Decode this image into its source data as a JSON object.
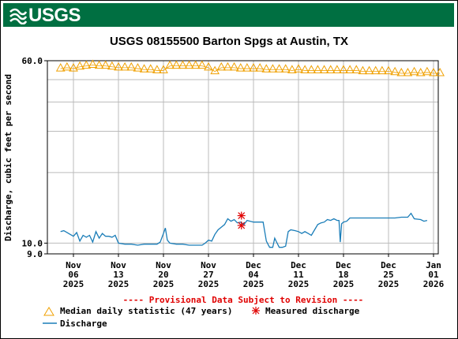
{
  "header": {
    "logo_text": "USGS",
    "logo_icon": "usgs-wave-icon",
    "brand_color": "#006f41"
  },
  "chart_data": {
    "type": "line",
    "title": "USGS 08155500 Barton Spgs at Austin, TX",
    "ylabel": "Discharge, cubic feet per second",
    "xlabel": "",
    "y_scale": "log",
    "ylim": [
      9.0,
      60.0
    ],
    "y_tick_labels": [
      "60.0",
      "10.0",
      "9.0"
    ],
    "grid": true,
    "x_ticks": [
      {
        "date": "2025-11-06",
        "l1": "Nov",
        "l2": "06",
        "l3": "2025"
      },
      {
        "date": "2025-11-13",
        "l1": "Nov",
        "l2": "13",
        "l3": "2025"
      },
      {
        "date": "2025-11-20",
        "l1": "Nov",
        "l2": "20",
        "l3": "2025"
      },
      {
        "date": "2025-11-27",
        "l1": "Nov",
        "l2": "27",
        "l3": "2025"
      },
      {
        "date": "2025-12-04",
        "l1": "Dec",
        "l2": "04",
        "l3": "2025"
      },
      {
        "date": "2025-12-11",
        "l1": "Dec",
        "l2": "11",
        "l3": "2025"
      },
      {
        "date": "2025-12-18",
        "l1": "Dec",
        "l2": "18",
        "l3": "2025"
      },
      {
        "date": "2025-12-25",
        "l1": "Dec",
        "l2": "25",
        "l3": "2025"
      },
      {
        "date": "2026-01-01",
        "l1": "Jan",
        "l2": "01",
        "l3": "2026"
      }
    ],
    "provisional_note": "---- Provisional Data Subject to Revision ----",
    "legend": {
      "median_label": "Median daily statistic (47 years)",
      "measured_label": "Measured discharge",
      "discharge_label": "Discharge",
      "placement": "bottom"
    },
    "colors": {
      "median": "#f0a000",
      "discharge": "#1a7db8",
      "measured": "#e00000",
      "note": "#e00000",
      "grid": "#bbbbbb"
    },
    "series": [
      {
        "name": "Median daily statistic (47 years)",
        "marker": "triangle",
        "points": [
          [
            "2025-11-04",
            55.5
          ],
          [
            "2025-11-05",
            56.0
          ],
          [
            "2025-11-06",
            55.5
          ],
          [
            "2025-11-07",
            56.5
          ],
          [
            "2025-11-08",
            57.0
          ],
          [
            "2025-11-09",
            57.5
          ],
          [
            "2025-11-10",
            57.0
          ],
          [
            "2025-11-11",
            57.0
          ],
          [
            "2025-11-12",
            56.5
          ],
          [
            "2025-11-13",
            56.0
          ],
          [
            "2025-11-14",
            56.0
          ],
          [
            "2025-11-15",
            56.0
          ],
          [
            "2025-11-16",
            55.5
          ],
          [
            "2025-11-17",
            55.0
          ],
          [
            "2025-11-18",
            55.0
          ],
          [
            "2025-11-19",
            54.5
          ],
          [
            "2025-11-20",
            54.5
          ],
          [
            "2025-11-21",
            57.0
          ],
          [
            "2025-11-22",
            57.0
          ],
          [
            "2025-11-23",
            57.0
          ],
          [
            "2025-11-24",
            57.0
          ],
          [
            "2025-11-25",
            57.0
          ],
          [
            "2025-11-26",
            57.0
          ],
          [
            "2025-11-27",
            56.0
          ],
          [
            "2025-11-28",
            54.0
          ],
          [
            "2025-11-29",
            56.0
          ],
          [
            "2025-11-30",
            56.0
          ],
          [
            "2025-12-01",
            56.0
          ],
          [
            "2025-12-02",
            55.5
          ],
          [
            "2025-12-03",
            55.5
          ],
          [
            "2025-12-04",
            55.5
          ],
          [
            "2025-12-05",
            55.5
          ],
          [
            "2025-12-06",
            55.0
          ],
          [
            "2025-12-07",
            55.0
          ],
          [
            "2025-12-08",
            55.0
          ],
          [
            "2025-12-09",
            55.0
          ],
          [
            "2025-12-10",
            54.5
          ],
          [
            "2025-12-11",
            55.0
          ],
          [
            "2025-12-12",
            54.5
          ],
          [
            "2025-12-13",
            54.5
          ],
          [
            "2025-12-14",
            54.5
          ],
          [
            "2025-12-15",
            54.5
          ],
          [
            "2025-12-16",
            54.5
          ],
          [
            "2025-12-17",
            54.5
          ],
          [
            "2025-12-18",
            54.5
          ],
          [
            "2025-12-19",
            54.5
          ],
          [
            "2025-12-20",
            54.5
          ],
          [
            "2025-12-21",
            54.0
          ],
          [
            "2025-12-22",
            54.0
          ],
          [
            "2025-12-23",
            54.0
          ],
          [
            "2025-12-24",
            54.0
          ],
          [
            "2025-12-25",
            54.0
          ],
          [
            "2025-12-26",
            53.5
          ],
          [
            "2025-12-27",
            53.0
          ],
          [
            "2025-12-28",
            53.0
          ],
          [
            "2025-12-29",
            53.5
          ],
          [
            "2025-12-30",
            53.0
          ],
          [
            "2025-12-31",
            53.5
          ],
          [
            "2026-01-01",
            53.0
          ],
          [
            "2026-01-02",
            53.0
          ]
        ]
      },
      {
        "name": "Discharge",
        "marker": "line",
        "points": [
          [
            "2025-11-04",
            11.2
          ],
          [
            "2025-11-04.5",
            11.3
          ],
          [
            "2025-11-05",
            11.1
          ],
          [
            "2025-11-05.5",
            10.9
          ],
          [
            "2025-11-06",
            10.7
          ],
          [
            "2025-11-06.5",
            11.1
          ],
          [
            "2025-11-07",
            10.2
          ],
          [
            "2025-11-07.5",
            10.8
          ],
          [
            "2025-11-08",
            10.6
          ],
          [
            "2025-11-08.5",
            10.8
          ],
          [
            "2025-11-09",
            10.1
          ],
          [
            "2025-11-09.5",
            11.2
          ],
          [
            "2025-11-10",
            10.5
          ],
          [
            "2025-11-10.5",
            11.0
          ],
          [
            "2025-11-11",
            10.7
          ],
          [
            "2025-11-11.5",
            10.7
          ],
          [
            "2025-11-12",
            10.6
          ],
          [
            "2025-11-12.5",
            10.8
          ],
          [
            "2025-11-13",
            10.0
          ],
          [
            "2025-11-14",
            9.9
          ],
          [
            "2025-11-15",
            9.9
          ],
          [
            "2025-11-16",
            9.8
          ],
          [
            "2025-11-17",
            9.9
          ],
          [
            "2025-11-18",
            9.9
          ],
          [
            "2025-11-19",
            9.9
          ],
          [
            "2025-11-19.5",
            10.1
          ],
          [
            "2025-11-20",
            11.0
          ],
          [
            "2025-11-20.3",
            11.6
          ],
          [
            "2025-11-20.6",
            10.3
          ],
          [
            "2025-11-21",
            10.0
          ],
          [
            "2025-11-22",
            9.9
          ],
          [
            "2025-11-23",
            9.9
          ],
          [
            "2025-11-24",
            9.8
          ],
          [
            "2025-11-25",
            9.8
          ],
          [
            "2025-11-26",
            9.8
          ],
          [
            "2025-11-26.5",
            10.0
          ],
          [
            "2025-11-27",
            10.3
          ],
          [
            "2025-11-27.5",
            10.2
          ],
          [
            "2025-11-28",
            10.9
          ],
          [
            "2025-11-28.5",
            11.4
          ],
          [
            "2025-11-29",
            11.7
          ],
          [
            "2025-11-29.5",
            12.0
          ],
          [
            "2025-11-30",
            12.7
          ],
          [
            "2025-11-30.5",
            12.4
          ],
          [
            "2025-12-01",
            12.6
          ],
          [
            "2025-12-01.5",
            12.2
          ],
          [
            "2025-12-02",
            12.3
          ],
          [
            "2025-12-02.5",
            12.0
          ],
          [
            "2025-12-03",
            12.5
          ],
          [
            "2025-12-04",
            12.3
          ],
          [
            "2025-12-05",
            12.3
          ],
          [
            "2025-12-05.5",
            12.3
          ],
          [
            "2025-12-06",
            10.2
          ],
          [
            "2025-12-06.5",
            9.6
          ],
          [
            "2025-12-07",
            9.6
          ],
          [
            "2025-12-07.3",
            10.5
          ],
          [
            "2025-12-07.6",
            10.1
          ],
          [
            "2025-12-08",
            9.6
          ],
          [
            "2025-12-08.5",
            9.6
          ],
          [
            "2025-12-09",
            9.7
          ],
          [
            "2025-12-09.4",
            11.2
          ],
          [
            "2025-12-09.8",
            11.4
          ],
          [
            "2025-12-10.5",
            11.3
          ],
          [
            "2025-12-11",
            11.2
          ],
          [
            "2025-12-11.5",
            11.0
          ],
          [
            "2025-12-12",
            11.2
          ],
          [
            "2025-12-12.5",
            11.0
          ],
          [
            "2025-12-13",
            10.8
          ],
          [
            "2025-12-13.5",
            11.4
          ],
          [
            "2025-12-14",
            12.0
          ],
          [
            "2025-12-14.5",
            12.2
          ],
          [
            "2025-12-15",
            12.3
          ],
          [
            "2025-12-15.5",
            12.6
          ],
          [
            "2025-12-16",
            12.5
          ],
          [
            "2025-12-16.5",
            12.7
          ],
          [
            "2025-12-17",
            12.5
          ],
          [
            "2025-12-17.3",
            12.5
          ],
          [
            "2025-12-17.5",
            10.1
          ],
          [
            "2025-12-17.7",
            12.1
          ],
          [
            "2025-12-18",
            12.3
          ],
          [
            "2025-12-18.5",
            12.4
          ],
          [
            "2025-12-19",
            12.8
          ],
          [
            "2025-12-20",
            12.8
          ],
          [
            "2025-12-21",
            12.8
          ],
          [
            "2025-12-22",
            12.8
          ],
          [
            "2025-12-23",
            12.8
          ],
          [
            "2025-12-24",
            12.8
          ],
          [
            "2025-12-25",
            12.8
          ],
          [
            "2025-12-26",
            12.8
          ],
          [
            "2025-12-27",
            12.9
          ],
          [
            "2025-12-28",
            12.9
          ],
          [
            "2025-12-28.5",
            13.4
          ],
          [
            "2025-12-29",
            12.7
          ],
          [
            "2025-12-30",
            12.6
          ],
          [
            "2025-12-30.5",
            12.4
          ],
          [
            "2025-12-31",
            12.5
          ]
        ]
      },
      {
        "name": "Measured discharge",
        "marker": "asterisk",
        "points": [
          [
            "2025-12-02",
            13.1
          ],
          [
            "2025-12-02",
            11.9
          ]
        ]
      }
    ]
  }
}
